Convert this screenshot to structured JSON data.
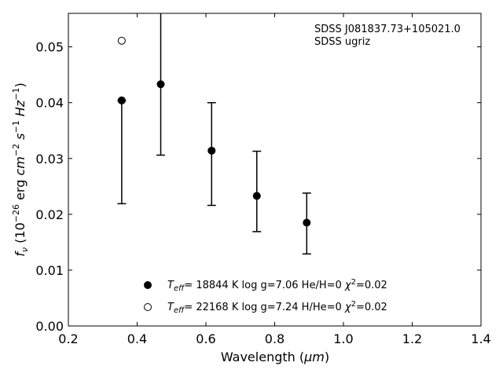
{
  "chart_data": {
    "type": "scatter",
    "xlabel_main": "Wavelength (",
    "xlabel_unit": "μm",
    "xlabel_close": ")",
    "ylabel_f": "f",
    "ylabel_sub": "ν",
    "ylabel_rest_a": " (10",
    "ylabel_exp1": "−26",
    "ylabel_rest_b": " erg ",
    "ylabel_cm": "cm",
    "ylabel_exp2": "−2",
    "ylabel_s": " s",
    "ylabel_exp3": "−1",
    "ylabel_hz": " Hz",
    "ylabel_exp4": "−1",
    "ylabel_close": ")",
    "xlim": [
      0.2,
      1.4
    ],
    "ylim": [
      0.0,
      0.056
    ],
    "x_ticks": [
      0.2,
      0.4,
      0.6,
      0.8,
      1.0,
      1.2,
      1.4
    ],
    "x_tick_labels": [
      "0.2",
      "0.4",
      "0.6",
      "0.8",
      "1.0",
      "1.2",
      "1.4"
    ],
    "y_ticks": [
      0.0,
      0.01,
      0.02,
      0.03,
      0.04,
      0.05
    ],
    "y_tick_labels": [
      "0.00",
      "0.01",
      "0.02",
      "0.03",
      "0.04",
      "0.05"
    ],
    "annotation_lines": [
      "SDSS J081837.73+105021.0",
      "SDSS ugriz"
    ],
    "observed": {
      "x": [
        0.3551,
        0.4686,
        0.6166,
        0.748,
        0.8932
      ],
      "y": [
        0.0404,
        0.0433,
        0.0314,
        0.0233,
        0.0185
      ],
      "err_low": [
        0.0219,
        0.0306,
        0.0216,
        0.0169,
        0.0129
      ],
      "err_high": [
        0.0404,
        0.056,
        0.04,
        0.0313,
        0.0238
      ]
    },
    "series": [
      {
        "marker": "filled-circle",
        "label_T": "T",
        "label_sub": "eff",
        "label_text": "= 18844 K  log g=7.06  He/H=0  ",
        "label_chi": "χ",
        "label_chi_exp": "2",
        "label_end": "=0.02",
        "x": [
          0.3551
        ],
        "y": [
          0.0404
        ]
      },
      {
        "marker": "open-circle",
        "label_T": "T",
        "label_sub": "eff",
        "label_text": "= 22168 K  log g=7.24  H/He=0  ",
        "label_chi": "χ",
        "label_chi_exp": "2",
        "label_end": "=0.02",
        "x": [
          0.3551
        ],
        "y": [
          0.0511
        ]
      }
    ],
    "legend_placement": "bottom-center",
    "grid": false
  }
}
